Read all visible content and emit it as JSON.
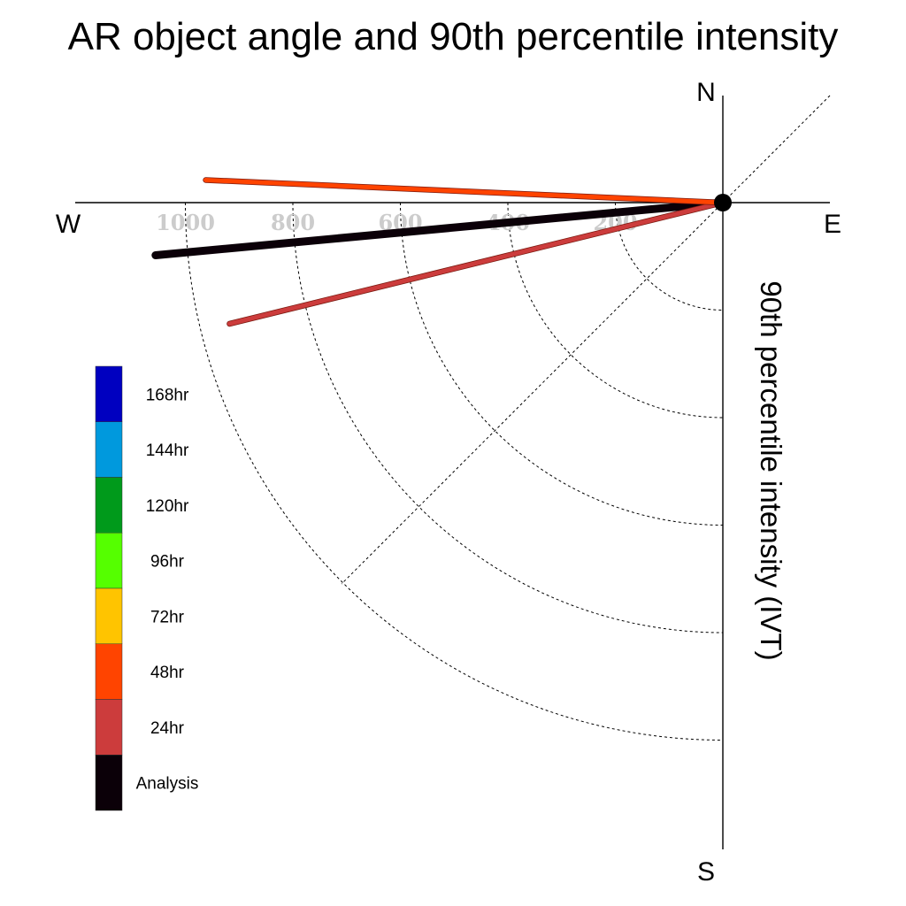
{
  "chart_data": {
    "type": "polar-line",
    "title": "AR object angle and 90th percentile intensity",
    "ylabel": "90th percentile intensity (IVT)",
    "compass": {
      "north": "N",
      "south": "S",
      "east": "E",
      "west": "W"
    },
    "radial_ticks": [
      200,
      400,
      600,
      800,
      1000
    ],
    "grid": true,
    "legend_position": "left",
    "legend": [
      {
        "label": "168hr",
        "color": "#0000c0"
      },
      {
        "label": "144hr",
        "color": "#0099dd"
      },
      {
        "label": "120hr",
        "color": "#009a1b"
      },
      {
        "label": "96hr",
        "color": "#55ff00"
      },
      {
        "label": "72hr",
        "color": "#ffc400"
      },
      {
        "label": "48hr",
        "color": "#ff4400"
      },
      {
        "label": "24hr",
        "color": "#cc3c3c"
      },
      {
        "label": "Analysis",
        "color": "#0b0008"
      }
    ],
    "series": [
      {
        "name": "Analysis",
        "angle_deg": 264.7,
        "intensity": 1060,
        "color": "#0b0008"
      },
      {
        "name": "24hr",
        "angle_deg": 256.2,
        "intensity": 945,
        "color": "#cc3c3c"
      },
      {
        "name": "48hr",
        "angle_deg": 272.5,
        "intensity": 963,
        "color": "#ff4400"
      }
    ]
  }
}
